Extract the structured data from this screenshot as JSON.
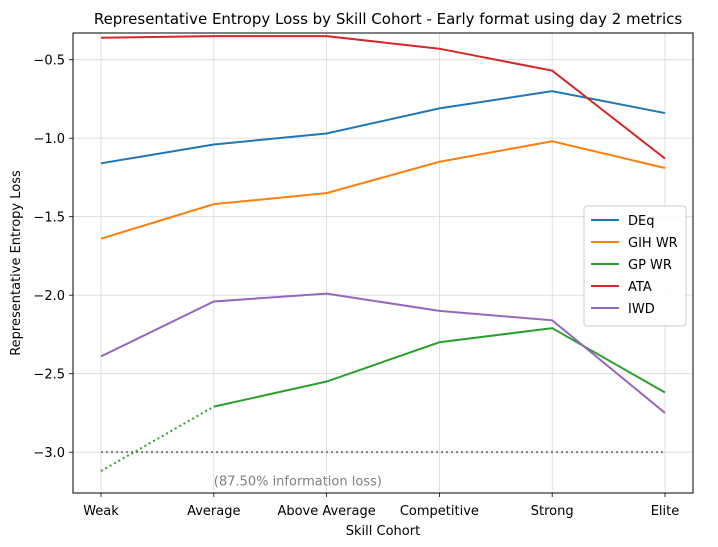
{
  "chart_data": {
    "type": "line",
    "title": "Representative Entropy Loss by Skill Cohort - Early format using day 2 metrics",
    "xlabel": "Skill Cohort",
    "ylabel": "Representative Entropy Loss",
    "categories": [
      "Weak",
      "Average",
      "Above Average",
      "Competitive",
      "Strong",
      "Elite"
    ],
    "ylim": [
      -3.26,
      -0.33
    ],
    "yticks": [
      -3.0,
      -2.5,
      -2.0,
      -1.5,
      -1.0,
      -0.5
    ],
    "ytick_labels": [
      "−3.0",
      "−2.5",
      "−2.0",
      "−1.5",
      "−1.0",
      "−0.5"
    ],
    "grid": true,
    "legend_position": "center-right",
    "series": [
      {
        "name": "DEq",
        "color": "#1f77b4",
        "values": [
          -1.16,
          -1.04,
          -0.97,
          -0.81,
          -0.7,
          -0.84
        ]
      },
      {
        "name": "GIH WR",
        "color": "#ff7f0e",
        "values": [
          -1.64,
          -1.42,
          -1.35,
          -1.15,
          -1.02,
          -1.19
        ]
      },
      {
        "name": "GP WR",
        "color": "#2ca02c",
        "values": [
          -3.12,
          -2.71,
          -2.55,
          -2.3,
          -2.21,
          -2.62
        ],
        "dotted_segments_until_index": 1
      },
      {
        "name": "ATA",
        "color": "#d62728",
        "values": [
          -0.36,
          -0.35,
          -0.35,
          -0.43,
          -0.57,
          -1.13
        ]
      },
      {
        "name": "IWD",
        "color": "#9467bd",
        "values": [
          -2.39,
          -2.04,
          -1.99,
          -2.1,
          -2.16,
          -2.75
        ]
      }
    ],
    "reference_line": {
      "y": -3.0,
      "color": "#808080",
      "style": "dotted"
    },
    "annotation": {
      "text": "(87.50% information loss)",
      "x_category_index": 1,
      "y": -3.18
    }
  }
}
